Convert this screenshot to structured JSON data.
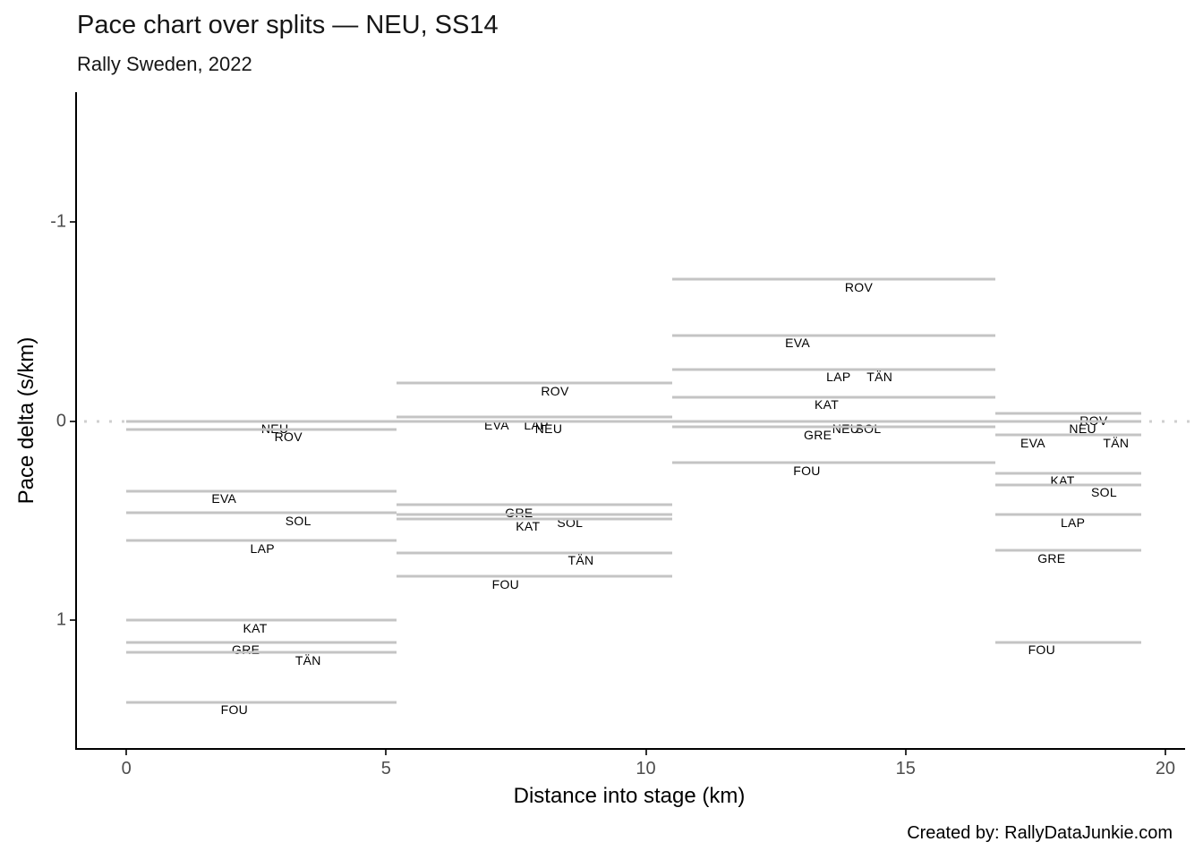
{
  "chart_data": {
    "type": "line",
    "title": "Pace chart over splits — NEU, SS14",
    "subtitle": "Rally Sweden, 2022",
    "xlabel": "Distance into stage (km)",
    "ylabel": "Pace delta (s/km)",
    "footer": "Created by: RallyDataJunkie.com",
    "xlim": [
      -0.95,
      20.38
    ],
    "ylim": [
      -1.65,
      1.64
    ],
    "y_axis_reversed_note": "negative (faster) values are plotted toward the top",
    "grid": false,
    "legend": false,
    "zero_reference_line": 0,
    "line_color": "#c4c4c4",
    "zero_line_color": "#cfcfcf",
    "axis_color": "#000000",
    "tick_label_color": "#4d4d4d",
    "label_dy": 0.038,
    "x_ticks": [
      {
        "value": 0,
        "label": "0"
      },
      {
        "value": 5,
        "label": "5"
      },
      {
        "value": 10,
        "label": "10"
      },
      {
        "value": 15,
        "label": "15"
      },
      {
        "value": 20,
        "label": "20"
      }
    ],
    "y_ticks": [
      {
        "value": -1,
        "label": "-1"
      },
      {
        "value": 0,
        "label": "0"
      },
      {
        "value": 1,
        "label": "1"
      }
    ],
    "splits": [
      {
        "name": "split-1",
        "start_km": 0.0,
        "end_km": 5.2,
        "entries": [
          {
            "driver": "NEU",
            "delta": 0.0,
            "label_km": 2.86
          },
          {
            "driver": "ROV",
            "delta": 0.04,
            "label_km": 3.12
          },
          {
            "driver": "EVA",
            "delta": 0.35,
            "label_km": 1.88
          },
          {
            "driver": "SOL",
            "delta": 0.46,
            "label_km": 3.31
          },
          {
            "driver": "LAP",
            "delta": 0.6,
            "label_km": 2.62
          },
          {
            "driver": "KAT",
            "delta": 1.0,
            "label_km": 2.48
          },
          {
            "driver": "GRE",
            "delta": 1.11,
            "label_km": 2.3
          },
          {
            "driver": "TÄN",
            "delta": 1.16,
            "label_km": 3.5
          },
          {
            "driver": "FOU",
            "delta": 1.41,
            "label_km": 2.08
          }
        ]
      },
      {
        "name": "split-2",
        "start_km": 5.2,
        "end_km": 10.5,
        "entries": [
          {
            "driver": "ROV",
            "delta": -0.19,
            "label_km": 8.25
          },
          {
            "driver": "EVA",
            "delta": -0.02,
            "label_km": 7.13
          },
          {
            "driver": "LAP",
            "delta": -0.02,
            "label_km": 7.89
          },
          {
            "driver": "NEU",
            "delta": 0.0,
            "label_km": 8.13
          },
          {
            "driver": "GRE",
            "delta": 0.42,
            "label_km": 7.56
          },
          {
            "driver": "SOL",
            "delta": 0.47,
            "label_km": 8.54
          },
          {
            "driver": "KAT",
            "delta": 0.49,
            "label_km": 7.73
          },
          {
            "driver": "TÄN",
            "delta": 0.66,
            "label_km": 8.75
          },
          {
            "driver": "FOU",
            "delta": 0.78,
            "label_km": 7.3
          }
        ]
      },
      {
        "name": "split-3",
        "start_km": 10.5,
        "end_km": 16.72,
        "entries": [
          {
            "driver": "ROV",
            "delta": -0.71,
            "label_km": 14.1
          },
          {
            "driver": "EVA",
            "delta": -0.43,
            "label_km": 12.92
          },
          {
            "driver": "LAP",
            "delta": -0.26,
            "label_km": 13.71
          },
          {
            "driver": "TÄN",
            "delta": -0.26,
            "label_km": 14.5
          },
          {
            "driver": "KAT",
            "delta": -0.12,
            "label_km": 13.48
          },
          {
            "driver": "NEU",
            "delta": 0.0,
            "label_km": 13.85
          },
          {
            "driver": "SOL",
            "delta": 0.0,
            "label_km": 14.28
          },
          {
            "driver": "GRE",
            "delta": 0.03,
            "label_km": 13.31
          },
          {
            "driver": "FOU",
            "delta": 0.21,
            "label_km": 13.1
          }
        ]
      },
      {
        "name": "split-4",
        "start_km": 16.72,
        "end_km": 19.53,
        "entries": [
          {
            "driver": "ROV",
            "delta": -0.04,
            "label_km": 18.62
          },
          {
            "driver": "NEU",
            "delta": 0.0,
            "label_km": 18.41
          },
          {
            "driver": "EVA",
            "delta": 0.07,
            "label_km": 17.45
          },
          {
            "driver": "TÄN",
            "delta": 0.07,
            "label_km": 19.05
          },
          {
            "driver": "KAT",
            "delta": 0.26,
            "label_km": 18.02
          },
          {
            "driver": "SOL",
            "delta": 0.32,
            "label_km": 18.82
          },
          {
            "driver": "LAP",
            "delta": 0.47,
            "label_km": 18.22
          },
          {
            "driver": "GRE",
            "delta": 0.65,
            "label_km": 17.81
          },
          {
            "driver": "FOU",
            "delta": 1.11,
            "label_km": 17.62
          }
        ]
      }
    ]
  }
}
